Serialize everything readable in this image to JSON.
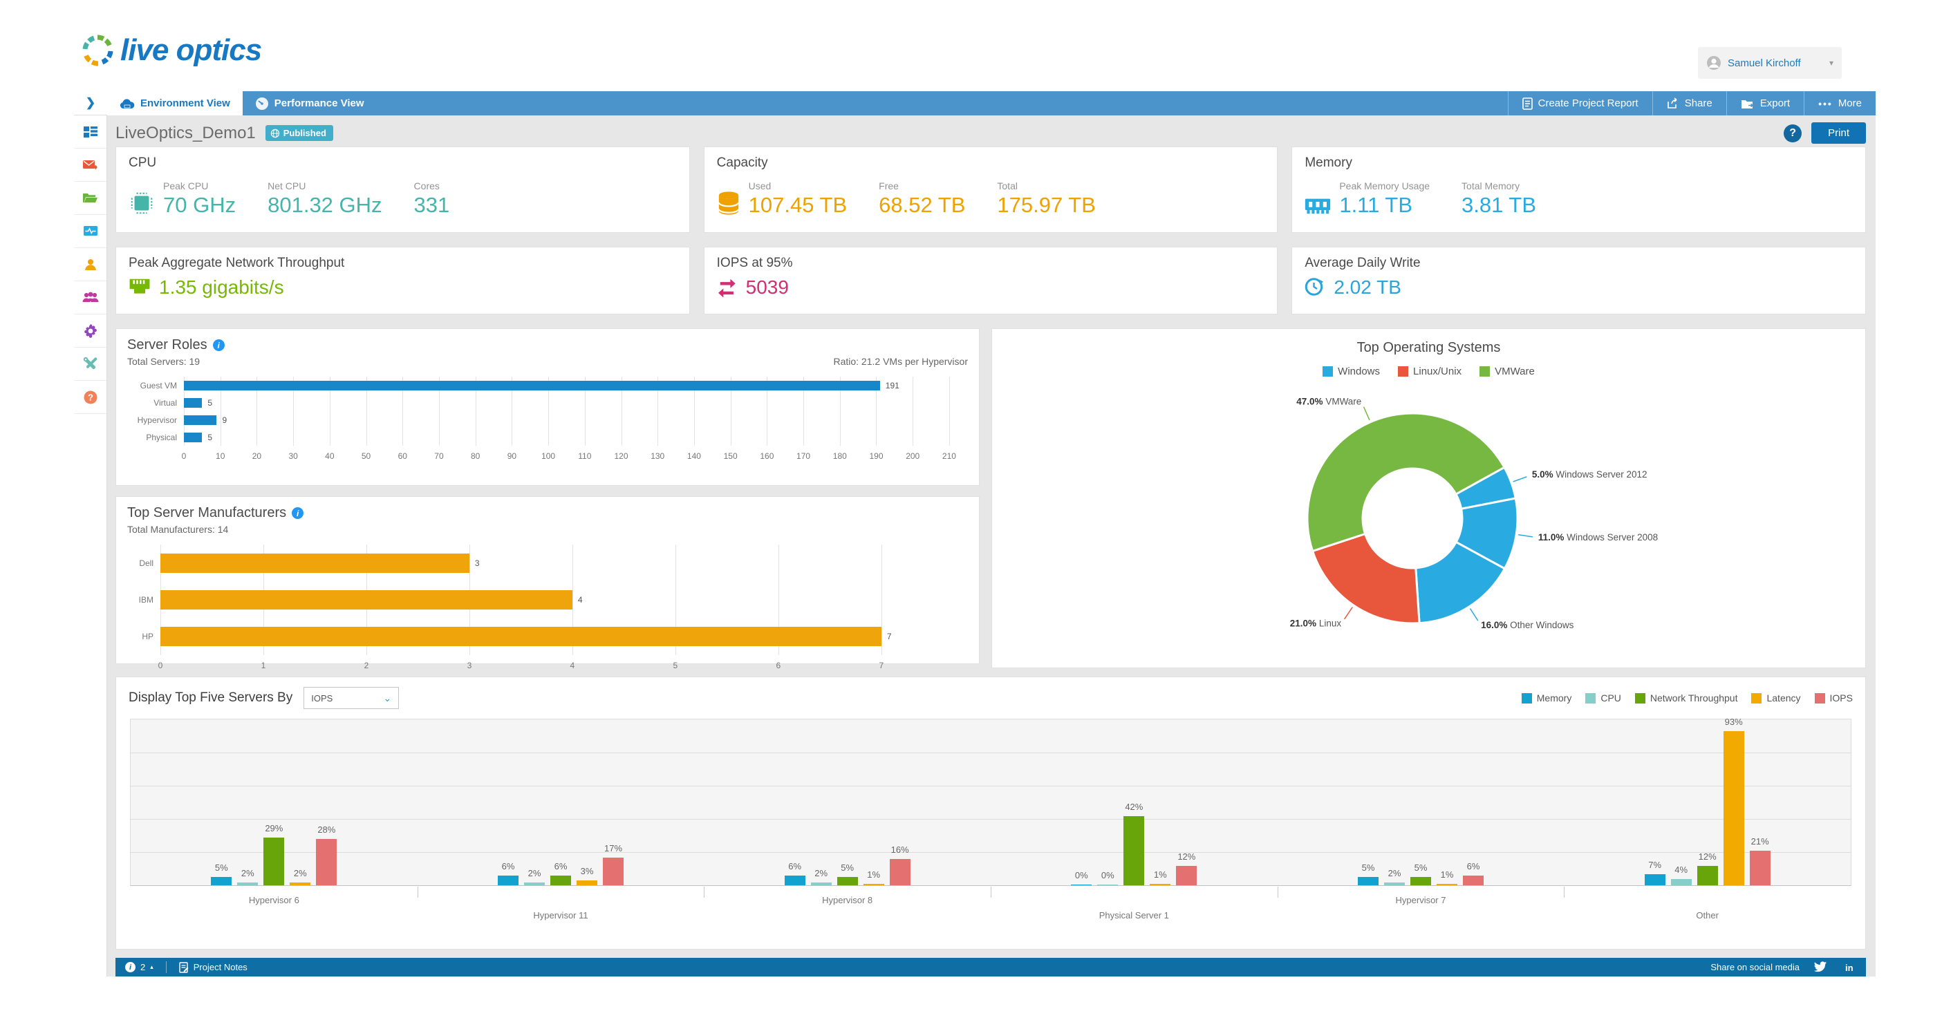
{
  "brand": {
    "logo_text": "live optics"
  },
  "user_menu": {
    "name": "Samuel Kirchoff",
    "caret": "▾"
  },
  "tabs": [
    {
      "label": "Environment View",
      "active": true,
      "icon": "cloud-icon"
    },
    {
      "label": "Performance View",
      "active": false,
      "icon": "gauge-icon"
    }
  ],
  "toolbar": {
    "create_report": "Create Project Report",
    "share": "Share",
    "export": "Export",
    "more": "More",
    "more_dots": "•••",
    "collapse_chevron": "❯"
  },
  "title_bar": {
    "project_name": "LiveOptics_Demo1",
    "status_badge": "Published",
    "help_label": "?",
    "print_label": "Print"
  },
  "sidebar": {
    "items": [
      {
        "name": "dashboard-tiles-icon",
        "color": "#1B7BBE"
      },
      {
        "name": "mail-send-icon",
        "color": "#E8573C"
      },
      {
        "name": "folder-icon",
        "color": "#6CB33F"
      },
      {
        "name": "activity-monitor-icon",
        "color": "#29ABE2"
      },
      {
        "name": "user-icon",
        "color": "#F0A40C"
      },
      {
        "name": "users-group-icon",
        "color": "#C0399F"
      },
      {
        "name": "settings-gear-icon",
        "color": "#9146BE"
      },
      {
        "name": "tools-icon",
        "color": "#66BBB3"
      },
      {
        "name": "help-icon",
        "color": "#F08159"
      }
    ]
  },
  "metric_cards": {
    "cpu": {
      "title": "CPU",
      "color": "#45B5AA",
      "metrics": [
        {
          "label": "Peak CPU",
          "value": "70 GHz"
        },
        {
          "label": "Net CPU",
          "value": "801.32 GHz"
        },
        {
          "label": "Cores",
          "value": "331"
        }
      ]
    },
    "capacity": {
      "title": "Capacity",
      "color": "#EFA100",
      "metrics": [
        {
          "label": "Used",
          "value": "107.45 TB"
        },
        {
          "label": "Free",
          "value": "68.52 TB"
        },
        {
          "label": "Total",
          "value": "175.97 TB"
        }
      ]
    },
    "memory": {
      "title": "Memory",
      "color": "#29ABE2",
      "metrics": [
        {
          "label": "Peak Memory Usage",
          "value": "1.11 TB"
        },
        {
          "label": "Total Memory",
          "value": "3.81 TB"
        }
      ]
    },
    "network": {
      "title": "Peak Aggregate Network Throughput",
      "value": "1.35 gigabits/s",
      "color": "#76B900"
    },
    "iops": {
      "title": "IOPS at 95%",
      "value": "5039",
      "color": "#D22E72"
    },
    "daily_write": {
      "title": "Average Daily Write",
      "value": "2.02 TB",
      "color": "#2BA3DB"
    }
  },
  "chart_data": [
    {
      "id": "server_roles",
      "type": "bar",
      "orientation": "horizontal",
      "title": "Server Roles",
      "subtitle_left": "Total Servers: 19",
      "subtitle_right": "Ratio: 21.2 VMs per Hypervisor",
      "categories": [
        "Guest VM",
        "Virtual",
        "Hypervisor",
        "Physical"
      ],
      "values": [
        191,
        5,
        9,
        5
      ],
      "bar_color": "#1787C9",
      "xlim": [
        0,
        210
      ],
      "tick_step": 10,
      "grid": true
    },
    {
      "id": "top_manufacturers",
      "type": "bar",
      "orientation": "horizontal",
      "title": "Top Server Manufacturers",
      "subtitle_left": "Total Manufacturers: 14",
      "categories": [
        "Dell",
        "IBM",
        "HP"
      ],
      "values": [
        3,
        4,
        7
      ],
      "bar_color": "#F0A40C",
      "xlim": [
        0,
        7
      ],
      "tick_step": 1,
      "grid": true
    },
    {
      "id": "top_os",
      "type": "pie",
      "donut": true,
      "title": "Top Operating Systems",
      "legend": [
        {
          "label": "Windows",
          "color": "#29ABE2"
        },
        {
          "label": "Linux/Unix",
          "color": "#E8573C"
        },
        {
          "label": "VMWare",
          "color": "#77B843"
        }
      ],
      "start_angle_deg": 61,
      "slices": [
        {
          "label": "Windows Server 2012",
          "pct": 5.0,
          "color": "#29ABE2"
        },
        {
          "label": "Windows Server 2008",
          "pct": 11.0,
          "color": "#29ABE2"
        },
        {
          "label": "Other Windows",
          "pct": 16.0,
          "color": "#29ABE2"
        },
        {
          "label": "Linux",
          "pct": 21.0,
          "color": "#E8573C"
        },
        {
          "label": "VMWare",
          "pct": 47.0,
          "color": "#77B843"
        }
      ]
    },
    {
      "id": "top_five_servers",
      "type": "bar",
      "grouped": true,
      "title": "Display Top Five Servers By",
      "selector_value": "IOPS",
      "categories": [
        "Hypervisor 6",
        "Hypervisor 11",
        "Hypervisor 8",
        "Physical Server 1",
        "Hypervisor 7",
        "Other"
      ],
      "series": [
        {
          "name": "Memory",
          "color": "#12A2CF",
          "values": [
            5,
            6,
            6,
            0,
            5,
            7
          ]
        },
        {
          "name": "CPU",
          "color": "#86CEC9",
          "values": [
            2,
            2,
            2,
            0,
            2,
            4
          ]
        },
        {
          "name": "Network Throughput",
          "color": "#68A50B",
          "values": [
            29,
            6,
            5,
            42,
            5,
            12
          ]
        },
        {
          "name": "Latency",
          "color": "#F2AA00",
          "values": [
            2,
            3,
            1,
            1,
            1,
            93
          ]
        },
        {
          "name": "IOPS",
          "color": "#E4716F",
          "values": [
            28,
            17,
            16,
            12,
            6,
            21
          ]
        }
      ],
      "ylim": [
        0,
        100
      ],
      "grid_step": 20,
      "value_suffix": "%",
      "legend_position": "top-right"
    }
  ],
  "footer": {
    "info_count": "2",
    "expand_arrow": "▴",
    "project_notes": "Project Notes",
    "share_text": "Share on social media"
  },
  "colors": {
    "accent": "#1878C2",
    "tabbar": "#4B94CB",
    "footer_bar": "#0F6FA5",
    "badge": "#41AECC",
    "print_button": "#1173B4"
  }
}
